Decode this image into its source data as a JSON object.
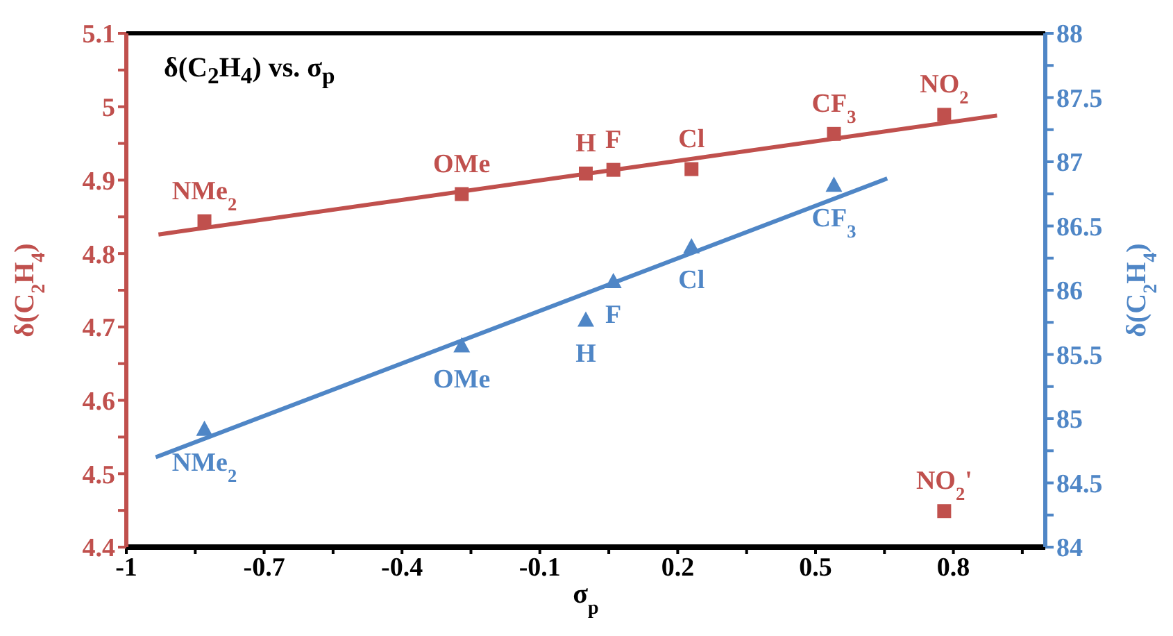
{
  "chart_data": {
    "type": "scatter",
    "title": "δ(C$_{2}$H$_{4}$) vs. σ$_{p}$",
    "xlabel": "σ$_{p}$",
    "ylabel": "δ(C$_{2}$H$_{4}$)",
    "y2label": "δ(C$_{2}$H$_{4}$)",
    "xlim": [
      -1,
      1
    ],
    "xticks": [
      -1,
      {
        "value": -0.85,
        "label": null
      },
      -0.7,
      {
        "value": -0.55,
        "label": null
      },
      -0.4,
      {
        "value": -0.25,
        "label": null
      },
      -0.1,
      {
        "value": 0.05,
        "label": null
      },
      0.2,
      {
        "value": 0.35,
        "label": null
      },
      0.5,
      {
        "value": 0.65,
        "label": null
      },
      0.8,
      {
        "value": 0.95,
        "label": null
      }
    ],
    "ylim": [
      4.4,
      5.1
    ],
    "yticks": [
      4.4,
      {
        "value": 4.45,
        "label": null
      },
      4.5,
      {
        "value": 4.55,
        "label": null
      },
      4.6,
      {
        "value": 4.65,
        "label": null
      },
      4.7,
      {
        "value": 4.75,
        "label": null
      },
      4.8,
      {
        "value": 4.85,
        "label": null
      },
      4.9,
      {
        "value": 4.95,
        "label": null
      },
      5,
      {
        "value": 5.05,
        "label": null
      },
      5.1
    ],
    "y2lim": [
      84,
      88
    ],
    "y2ticks": [
      84,
      {
        "value": 84.25,
        "label": null
      },
      84.5,
      {
        "value": 84.75,
        "label": null
      },
      85,
      {
        "value": 85.25,
        "label": null
      },
      85.5,
      {
        "value": 85.75,
        "label": null
      },
      86,
      {
        "value": 86.25,
        "label": null
      },
      86.5,
      {
        "value": 86.75,
        "label": null
      },
      87,
      {
        "value": 87.25,
        "label": null
      },
      87.5,
      {
        "value": 87.75,
        "label": null
      },
      88
    ],
    "series": [
      {
        "color": "#c0504d",
        "marker": "square",
        "x": [
          -0.83,
          -0.27,
          0,
          0.06,
          0.23,
          0.54,
          0.78,
          0.78
        ],
        "values": [
          4.844,
          4.881,
          4.909,
          4.914,
          4.915,
          4.963,
          4.989,
          4.449
        ]
      },
      {
        "axis": "y2",
        "color": "#4f86c6",
        "marker": "triangle",
        "x": [
          -0.83,
          -0.27,
          0,
          0.06,
          0.23,
          0.54
        ],
        "values": [
          84.92,
          85.57,
          85.77,
          86.07,
          86.34,
          86.82
        ]
      },
      {
        "type": "line",
        "color": "#c0504d",
        "marker": "none",
        "x": [
          -0.93,
          0.895
        ],
        "values": [
          4.826,
          4.988
        ]
      },
      {
        "type": "line",
        "axis": "y2",
        "color": "#4f86c6",
        "marker": "none",
        "x": [
          -0.936,
          0.656
        ],
        "values": [
          84.7,
          86.87
        ]
      }
    ],
    "annotations": [
      {
        "text": "NMe$_{2}$",
        "x": -0.83,
        "y": 4.844
      },
      {
        "text": "OMe",
        "x": -0.27,
        "y": 4.881
      },
      {
        "text": "H",
        "x": 0,
        "y": 4.909
      },
      {
        "text": "F",
        "x": 0.06,
        "y": 4.914
      },
      {
        "text": "Cl",
        "x": 0.23,
        "y": 4.915
      },
      {
        "text": "CF$_{3}$",
        "x": 0.54,
        "y": 4.963
      },
      {
        "text": "NO$_{2}$",
        "x": 0.78,
        "y": 4.989
      },
      {
        "text": "NO$_{2}$'",
        "x": 0.78,
        "y": 4.449
      },
      "NMe$_{2}$",
      "OMe",
      "H",
      "F",
      "Cl",
      "CF$_{3}$"
    ]
  }
}
